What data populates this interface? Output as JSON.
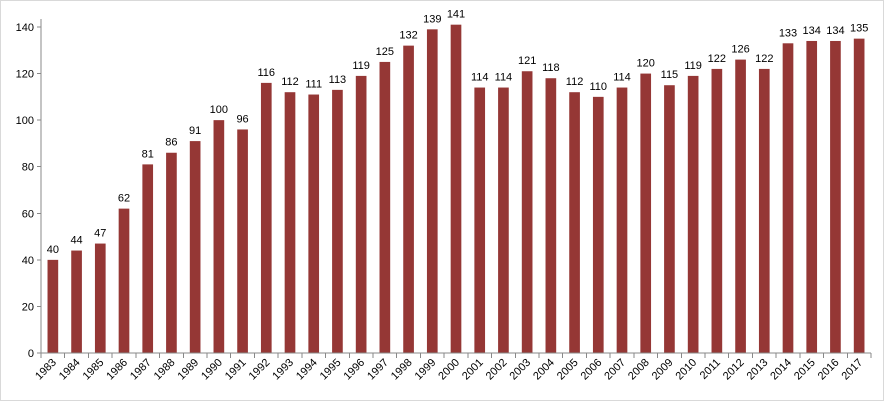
{
  "chart_data": {
    "type": "bar",
    "title": "",
    "xlabel": "",
    "ylabel": "",
    "categories": [
      "1983",
      "1984",
      "1985",
      "1986",
      "1987",
      "1988",
      "1989",
      "1990",
      "1991",
      "1992",
      "1993",
      "1994",
      "1995",
      "1996",
      "1997",
      "1998",
      "1999",
      "2000",
      "2001",
      "2002",
      "2003",
      "2004",
      "2005",
      "2006",
      "2007",
      "2008",
      "2009",
      "2010",
      "2011",
      "2012",
      "2013",
      "2014",
      "2015",
      "2016",
      "2017"
    ],
    "values": [
      40,
      44,
      47,
      62,
      81,
      86,
      91,
      100,
      96,
      116,
      112,
      111,
      113,
      119,
      125,
      132,
      139,
      141,
      114,
      114,
      121,
      118,
      112,
      110,
      114,
      120,
      115,
      119,
      122,
      126,
      122,
      133,
      134,
      134,
      135
    ],
    "ylim": [
      0,
      140
    ],
    "yticks": [
      0,
      20,
      40,
      60,
      80,
      100,
      120,
      140
    ],
    "grid": false,
    "legend": "none",
    "data_labels": true,
    "colors": {
      "bar": "#953735"
    }
  }
}
